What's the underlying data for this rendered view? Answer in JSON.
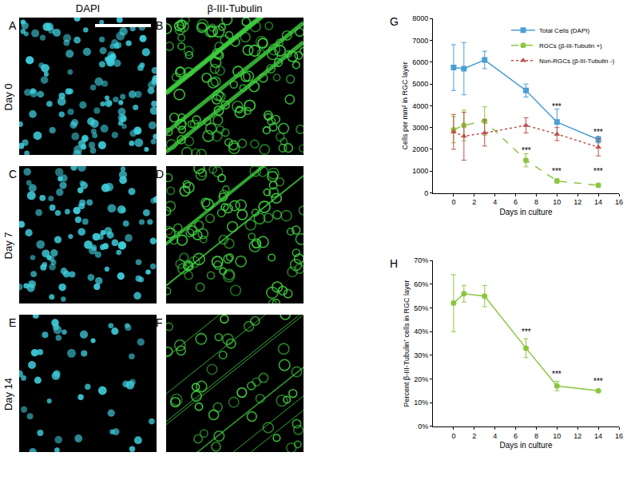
{
  "image_panels": {
    "columns": [
      "DAPI",
      "β-III-Tubulin"
    ],
    "rows": [
      {
        "label": "Day 0",
        "panels": [
          "A",
          "B"
        ]
      },
      {
        "label": "Day 7",
        "panels": [
          "C",
          "D"
        ]
      },
      {
        "label": "Day 14",
        "panels": [
          "E",
          "F"
        ]
      }
    ]
  },
  "chart_data": [
    {
      "panel_label": "G",
      "type": "line",
      "x": [
        0,
        1,
        3,
        7,
        10,
        14
      ],
      "xlabel": "Days in culture",
      "ylabel": "Cells per mm² in RGC layer",
      "xlim": [
        -2,
        16
      ],
      "xticks": [
        0,
        2,
        4,
        6,
        8,
        10,
        12,
        14,
        16
      ],
      "ylim": [
        0,
        8000
      ],
      "yticks": [
        0,
        1000,
        2000,
        3000,
        4000,
        5000,
        6000,
        7000,
        8000
      ],
      "grid": false,
      "legend": "upper right",
      "series": [
        {
          "name": "Total Cells (DAPI)",
          "color": "#4a9fd4",
          "marker": "square",
          "line_style": "solid",
          "values": [
            5750,
            5700,
            6100,
            4700,
            3250,
            2450
          ],
          "errors": [
            1050,
            1200,
            400,
            300,
            600,
            150
          ]
        },
        {
          "name": "RGCs (β-III-Tubulin +)",
          "color": "#8cc63f",
          "marker": "circle",
          "line_style": "dash",
          "values": [
            2900,
            3100,
            3300,
            1500,
            550,
            350
          ],
          "errors": [
            600,
            700,
            650,
            300,
            100,
            80
          ]
        },
        {
          "name": "Non-RGCs (β-III-Tubulin -)",
          "color": "#c0504d",
          "marker": "triangle",
          "line_style": "dot",
          "values": [
            2800,
            2600,
            2750,
            3100,
            2700,
            2100
          ],
          "errors": [
            800,
            1100,
            600,
            350,
            300,
            400
          ]
        }
      ],
      "annotations": [
        {
          "x": 7,
          "y": 1950,
          "text": "***"
        },
        {
          "x": 10,
          "y": 3950,
          "text": "***"
        },
        {
          "x": 10,
          "y": 1000,
          "text": "***"
        },
        {
          "x": 14,
          "y": 2800,
          "text": "***"
        },
        {
          "x": 14,
          "y": 1000,
          "text": "***"
        }
      ]
    },
    {
      "panel_label": "H",
      "type": "line",
      "x": [
        0,
        1,
        3,
        7,
        10,
        14
      ],
      "xlabel": "Days in culture",
      "ylabel": "Percent β-III-Tubulin⁺ cells in RGC layer",
      "xlim": [
        -2,
        16
      ],
      "xticks": [
        0,
        2,
        4,
        6,
        8,
        10,
        12,
        14,
        16
      ],
      "ylim": [
        0,
        70
      ],
      "yticks": [
        {
          "value": 0,
          "label": "0%"
        },
        {
          "value": 10,
          "label": "10%"
        },
        {
          "value": 20,
          "label": "20%"
        },
        {
          "value": 30,
          "label": "30%"
        },
        {
          "value": 40,
          "label": "40%"
        },
        {
          "value": 50,
          "label": "50%"
        },
        {
          "value": 60,
          "label": "60%"
        },
        {
          "value": 70,
          "label": "70%"
        }
      ],
      "grid": false,
      "series": [
        {
          "color": "#8cc63f",
          "marker": "circle",
          "line_style": "solid",
          "values": [
            52,
            56,
            55,
            33,
            17,
            15
          ],
          "errors": [
            12,
            3.5,
            4.5,
            4,
            2,
            0.5
          ]
        }
      ],
      "annotations": [
        {
          "x": 7,
          "y": 40,
          "text": "***"
        },
        {
          "x": 10,
          "y": 22,
          "text": "***"
        },
        {
          "x": 14,
          "y": 19,
          "text": "***"
        }
      ]
    }
  ]
}
